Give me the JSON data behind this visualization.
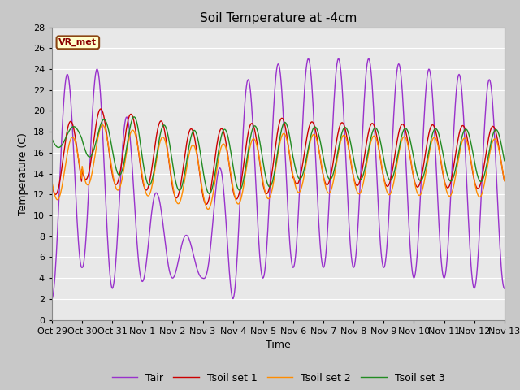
{
  "title": "Soil Temperature at -4cm",
  "xlabel": "Time",
  "ylabel": "Temperature (C)",
  "ylim": [
    0,
    28
  ],
  "xtick_labels": [
    "Oct 29",
    "Oct 30",
    "Oct 31",
    "Nov 1",
    "Nov 2",
    "Nov 3",
    "Nov 4",
    "Nov 5",
    "Nov 6",
    "Nov 7",
    "Nov 8",
    "Nov 9",
    "Nov 10",
    "Nov 11",
    "Nov 12",
    "Nov 13"
  ],
  "series_colors": {
    "Tair": "#9932CC",
    "Tsoil set 1": "#CC0000",
    "Tsoil set 2": "#FF8C00",
    "Tsoil set 3": "#228B22"
  },
  "legend_label": "VR_met",
  "fig_bg_color": "#C8C8C8",
  "plot_bg_color": "#E8E8E8",
  "title_fontsize": 11,
  "axis_fontsize": 9,
  "tick_fontsize": 8,
  "grid_color": "#FFFFFF",
  "n_days": 15,
  "pts_per_day": 48
}
